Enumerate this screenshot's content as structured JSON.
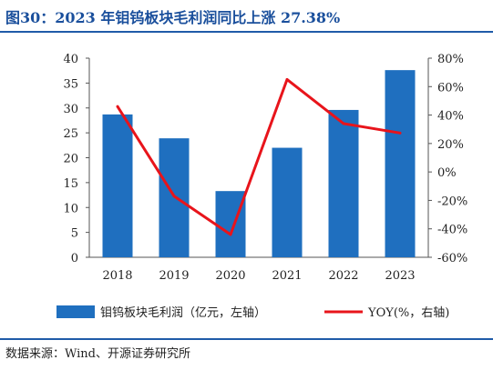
{
  "title": "图30：2023 年钼钨板块毛利润同比上涨 27.38%",
  "source": "数据来源：Wind、开源证券研究所",
  "chart_data": {
    "type": "bar+line",
    "categories": [
      "2018",
      "2019",
      "2020",
      "2021",
      "2022",
      "2023"
    ],
    "series": [
      {
        "name": "钼钨板块毛利润（亿元，左轴）",
        "type": "bar",
        "axis": "left",
        "values": [
          28.7,
          23.9,
          13.3,
          22.0,
          29.6,
          37.6
        ],
        "color": "#1f6fbf"
      },
      {
        "name": "YOY(%，右轴)",
        "type": "line",
        "axis": "right",
        "values": [
          46,
          -17,
          -44,
          65,
          34,
          27.38
        ],
        "color": "#e8141b"
      }
    ],
    "left_axis": {
      "ylim": [
        0,
        40
      ],
      "ticks": [
        "0",
        "5",
        "10",
        "15",
        "20",
        "25",
        "30",
        "35",
        "40"
      ]
    },
    "right_axis": {
      "ylim": [
        -60,
        80
      ],
      "ticks": [
        "-60%",
        "-40%",
        "-20%",
        "0%",
        "20%",
        "40%",
        "60%",
        "80%"
      ]
    },
    "legend_placement": "bottom",
    "grid": false
  }
}
